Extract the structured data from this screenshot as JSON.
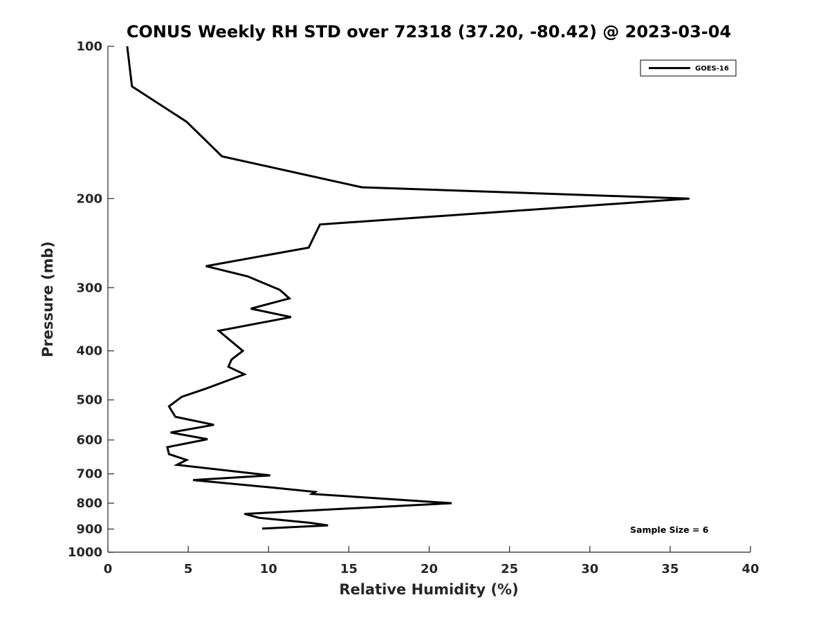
{
  "chart_data": {
    "type": "line",
    "title": "CONUS Weekly RH STD over 72318 (37.20, -80.42) @ 2023-03-04",
    "xlabel": "Relative Humidity (%)",
    "ylabel": "Pressure (mb)",
    "xlim": [
      0,
      40
    ],
    "ylim": [
      100,
      1000
    ],
    "yscale": "log",
    "yreversed": true,
    "x_ticks": [
      0,
      5,
      10,
      15,
      20,
      25,
      30,
      35,
      40
    ],
    "x_tick_labels": [
      "0",
      "5",
      "10",
      "15",
      "20",
      "25",
      "30",
      "35",
      "40"
    ],
    "y_ticks": [
      100,
      200,
      300,
      400,
      500,
      600,
      700,
      800,
      900,
      1000
    ],
    "y_tick_labels": [
      "100",
      "200",
      "300",
      "400",
      "500",
      "600",
      "700",
      "800",
      "900",
      "1000"
    ],
    "grid": false,
    "legend_position": "top-right",
    "annotation": "Sample Size = 6",
    "series": [
      {
        "name": "GOES-16",
        "color": "#000000",
        "x": [
          1.2,
          1.5,
          4.9,
          7.1,
          15.8,
          36.2,
          13.2,
          12.5,
          6.1,
          8.7,
          10.7,
          11.3,
          8.9,
          11.4,
          6.9,
          8.4,
          7.7,
          7.5,
          8.5,
          6.1,
          4.6,
          3.8,
          4.2,
          6.6,
          3.9,
          6.2,
          3.7,
          3.8,
          4.9,
          4.3,
          10.1,
          5.3,
          10.2,
          12.9,
          12.7,
          21.4,
          8.5,
          9.4,
          12.6,
          13.7,
          9.6
        ],
        "y": [
          100,
          120,
          141,
          165,
          190,
          200,
          225,
          250,
          272,
          285,
          303,
          315,
          330,
          343,
          365,
          400,
          416,
          430,
          445,
          475,
          493,
          515,
          540,
          560,
          580,
          598,
          620,
          640,
          657,
          672,
          705,
          720,
          745,
          760,
          767,
          800,
          840,
          855,
          875,
          885,
          898
        ]
      }
    ]
  }
}
